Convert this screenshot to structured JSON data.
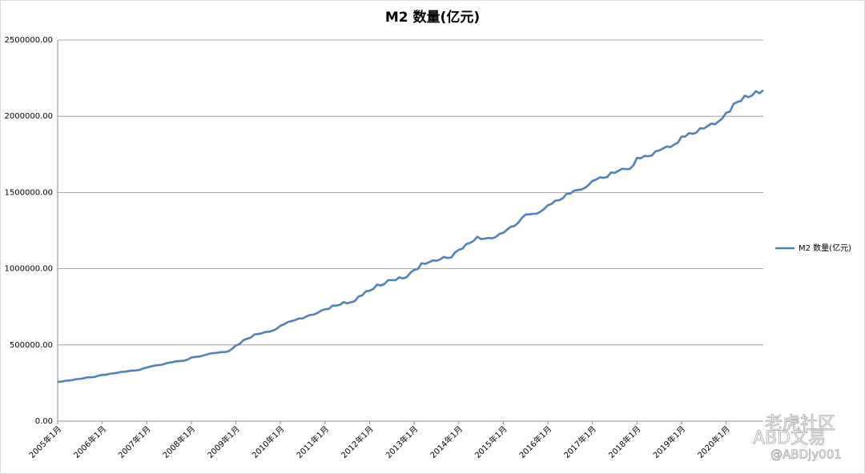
{
  "chart_data": {
    "type": "line",
    "title": "M2 数量(亿元)",
    "categories": [
      "2005年1月",
      null,
      null,
      null,
      null,
      null,
      null,
      null,
      null,
      null,
      null,
      null,
      "2006年1月",
      null,
      null,
      null,
      null,
      null,
      null,
      null,
      null,
      null,
      null,
      null,
      "2007年1月",
      null,
      null,
      null,
      null,
      null,
      null,
      null,
      null,
      null,
      null,
      null,
      "2008年1月",
      null,
      null,
      null,
      null,
      null,
      null,
      null,
      null,
      null,
      null,
      null,
      "2009年1月",
      null,
      null,
      null,
      null,
      null,
      null,
      null,
      null,
      null,
      null,
      null,
      "2010年1月",
      null,
      null,
      null,
      null,
      null,
      null,
      null,
      null,
      null,
      null,
      null,
      "2011年1月",
      null,
      null,
      null,
      null,
      null,
      null,
      null,
      null,
      null,
      null,
      null,
      "2012年1月",
      null,
      null,
      null,
      null,
      null,
      null,
      null,
      null,
      null,
      null,
      null,
      "2013年1月",
      null,
      null,
      null,
      null,
      null,
      null,
      null,
      null,
      null,
      null,
      null,
      "2014年1月",
      null,
      null,
      null,
      null,
      null,
      null,
      null,
      null,
      null,
      null,
      null,
      "2015年1月",
      null,
      null,
      null,
      null,
      null,
      null,
      null,
      null,
      null,
      null,
      null,
      "2016年1月",
      null,
      null,
      null,
      null,
      null,
      null,
      null,
      null,
      null,
      null,
      null,
      "2017年1月",
      null,
      null,
      null,
      null,
      null,
      null,
      null,
      null,
      null,
      null,
      null,
      "2018年1月",
      null,
      null,
      null,
      null,
      null,
      null,
      null,
      null,
      null,
      null,
      null,
      "2019年1月",
      null,
      null,
      null,
      null,
      null,
      null,
      null,
      null,
      null,
      null,
      null,
      "2020年1月",
      null,
      null,
      null,
      null,
      null,
      null,
      null,
      null,
      null,
      null
    ],
    "series": [
      {
        "name": "M2 数量(亿元)",
        "color": "#4f81bd",
        "values": [
          257708,
          259357,
          264589,
          266993,
          269240,
          275785,
          276966,
          281288,
          287438,
          287592,
          289724,
          298756,
          303571,
          304516,
          310491,
          313702,
          316709,
          322756,
          324010,
          327885,
          331865,
          332747,
          335486,
          345578,
          351498,
          358659,
          364104,
          367326,
          369718,
          377832,
          383884,
          387205,
          393099,
          394204,
          397078,
          403442,
          417846,
          421037,
          423054,
          429314,
          436221,
          443141,
          446362,
          448846,
          452898,
          453134,
          458644,
          475167,
          496135,
          506708,
          530627,
          540481,
          548264,
          568916,
          571894,
          576699,
          585405,
          586643,
          594604,
          606225,
          625609,
          636073,
          649947,
          656561,
          663351,
          673922,
          674051,
          687507,
          696471,
          699776,
          710339,
          725852,
          733884,
          736131,
          758131,
          757385,
          763410,
          780821,
          772923,
          780852,
          787406,
          816829,
          825494,
          851591,
          855898,
          867171,
          895566,
          889605,
          900049,
          924991,
          925374,
          924894,
          943688,
          936404,
          944846,
          974149,
          992129,
          998600,
          1035858,
          1032552,
          1042169,
          1054403,
          1052212,
          1061256,
          1077379,
          1070242,
          1074095,
          1106525,
          1123521,
          1131760,
          1160687,
          1168813,
          1182300,
          1209587,
          1194249,
          1197499,
          1202051,
          1199236,
          1208606,
          1228375,
          1235600,
          1255900,
          1275300,
          1280000,
          1301000,
          1333400,
          1354500,
          1356800,
          1359800,
          1361000,
          1374200,
          1392278,
          1416319,
          1424600,
          1446198,
          1448900,
          1461700,
          1490500,
          1491600,
          1511000,
          1516400,
          1519500,
          1530400,
          1550067,
          1575945,
          1584900,
          1599600,
          1596000,
          1601900,
          1631300,
          1628400,
          1641800,
          1655700,
          1653400,
          1653500,
          1676769,
          1726800,
          1724400,
          1739900,
          1737700,
          1743100,
          1770200,
          1776200,
          1788700,
          1801700,
          1797900,
          1814200,
          1826744,
          1865900,
          1867400,
          1889400,
          1884700,
          1892800,
          1921400,
          1919400,
          1935500,
          1952200,
          1947100,
          1966900,
          1986489,
          2023066,
          2030800,
          2080900,
          2093800,
          2100200,
          2134900,
          2125500,
          2136800,
          2164500,
          2149700,
          2172000
        ]
      }
    ],
    "ylim": [
      0,
      2500000
    ],
    "yticks": [
      {
        "value": 0,
        "label": "0.00"
      },
      {
        "value": 500000,
        "label": "500000.00"
      },
      {
        "value": 1000000,
        "label": "1000000.00"
      },
      {
        "value": 1500000,
        "label": "1500000.00"
      },
      {
        "value": 2000000,
        "label": "2000000.00"
      },
      {
        "value": 2500000,
        "label": "2500000.00"
      }
    ],
    "grid": true,
    "legend": "right"
  },
  "watermark": [
    "老虎社区",
    "ABD文易",
    "@ABDjy001"
  ]
}
